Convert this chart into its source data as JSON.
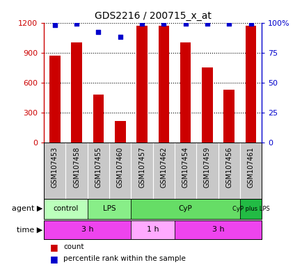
{
  "title": "GDS2216 / 200715_x_at",
  "samples": [
    "GSM107453",
    "GSM107458",
    "GSM107455",
    "GSM107460",
    "GSM107457",
    "GSM107462",
    "GSM107454",
    "GSM107459",
    "GSM107456",
    "GSM107461"
  ],
  "counts": [
    870,
    1000,
    480,
    220,
    1170,
    1170,
    1000,
    750,
    530,
    1170
  ],
  "percentiles": [
    98,
    99,
    92,
    88,
    99,
    99,
    99,
    99,
    99,
    99
  ],
  "ylim_left": [
    0,
    1200
  ],
  "ylim_right": [
    0,
    100
  ],
  "yticks_left": [
    0,
    300,
    600,
    900,
    1200
  ],
  "yticks_right": [
    0,
    25,
    50,
    75,
    100
  ],
  "ytick_labels_right": [
    "0",
    "25",
    "50",
    "75",
    "100%"
  ],
  "agent_groups": [
    {
      "label": "control",
      "start": 0,
      "end": 2,
      "color": "#bbffbb"
    },
    {
      "label": "LPS",
      "start": 2,
      "end": 4,
      "color": "#88ee88"
    },
    {
      "label": "CyP",
      "start": 4,
      "end": 9,
      "color": "#66dd66"
    },
    {
      "label": "CyP plus LPS",
      "start": 9,
      "end": 10,
      "color": "#22bb44"
    }
  ],
  "time_groups": [
    {
      "label": "3 h",
      "start": 0,
      "end": 4,
      "color": "#ee44ee"
    },
    {
      "label": "1 h",
      "start": 4,
      "end": 6,
      "color": "#ffaaff"
    },
    {
      "label": "3 h",
      "start": 6,
      "end": 10,
      "color": "#ee44ee"
    }
  ],
  "bar_color": "#cc0000",
  "dot_color": "#0000cc",
  "tick_color_left": "#cc0000",
  "tick_color_right": "#0000cc",
  "sample_bg": "#c8c8c8",
  "bar_width": 0.5
}
